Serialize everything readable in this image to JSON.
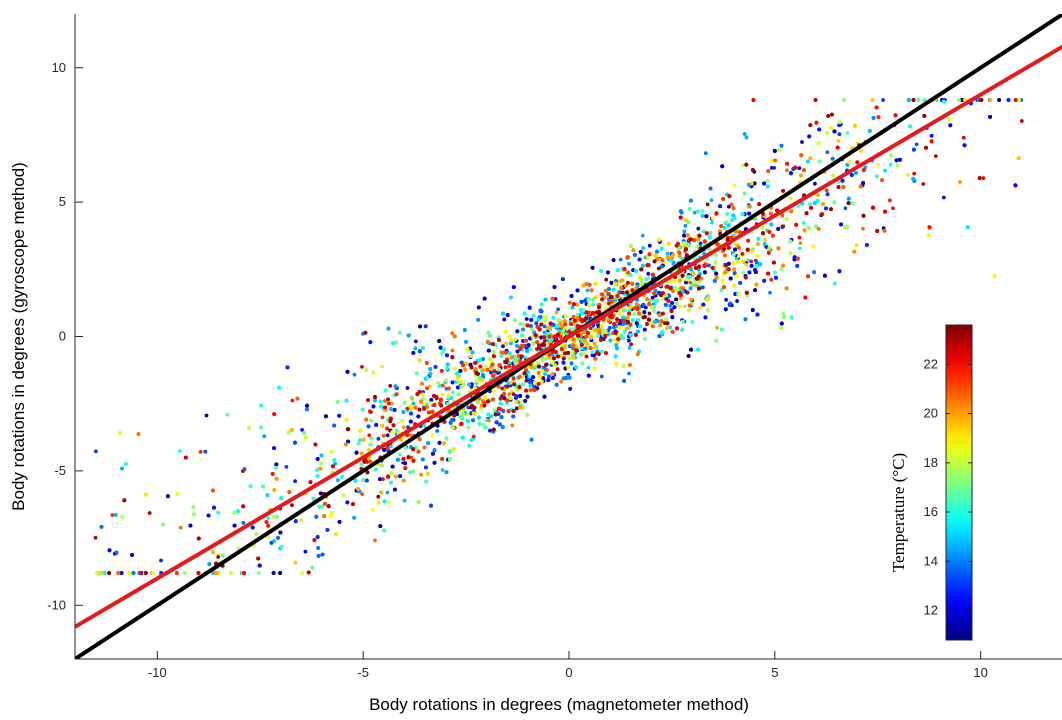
{
  "chart_data": {
    "type": "scatter",
    "xlabel": "Body rotations in degrees (magnetometer method)",
    "ylabel": "Body rotations in degrees (gyroscope method)",
    "xlim": [
      -12,
      12
    ],
    "ylim": [
      -12,
      12
    ],
    "xticks": [
      -10,
      -5,
      0,
      5,
      10
    ],
    "yticks": [
      -10,
      -5,
      0,
      5,
      10
    ],
    "grid": false,
    "lines": [
      {
        "name": "",
        "color": "#000000",
        "x": [
          -12,
          12
        ],
        "y": [
          -12,
          12
        ]
      },
      {
        "name": "",
        "color": "#e41a1c",
        "x": [
          -12,
          12
        ],
        "y": [
          -10.8,
          10.8
        ]
      }
    ],
    "colorbar": {
      "label": "Temperature (°C)",
      "colormap": "jet",
      "range": [
        10.8,
        23.6
      ],
      "ticks": [
        12,
        14,
        16,
        18,
        20,
        22
      ],
      "placement": "lower-right inset"
    },
    "point_cloud": {
      "count": 9000,
      "x_range": [
        -11.7,
        11.0
      ],
      "y_range": [
        -8.8,
        8.8
      ],
      "trend": "y ≈ 0.85·x (spread grows with |x|)",
      "color_by": "temperature",
      "temperature_range": [
        11,
        23.5
      ]
    }
  }
}
